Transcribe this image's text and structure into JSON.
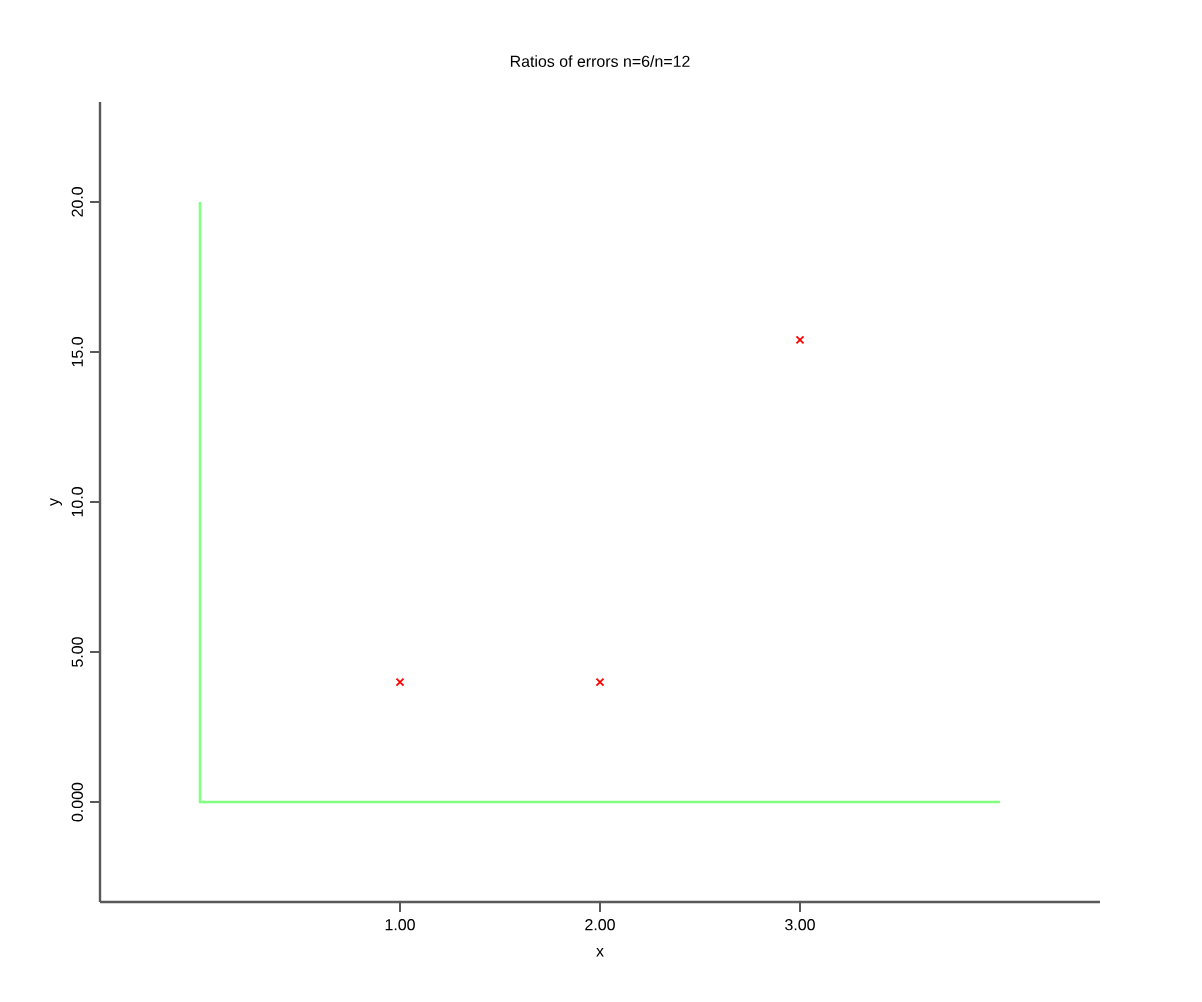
{
  "chart_data": {
    "type": "scatter",
    "title": "Ratios of errors n=6/n=12",
    "xlabel": "x",
    "ylabel": "y",
    "xlim": [
      -0.5,
      4.5
    ],
    "ylim": [
      -3.33,
      23.33
    ],
    "xticks": [
      {
        "value": 1,
        "label": "1.00"
      },
      {
        "value": 2,
        "label": "2.00"
      },
      {
        "value": 3,
        "label": "3.00"
      }
    ],
    "yticks": [
      {
        "value": 0,
        "label": "0.000"
      },
      {
        "value": 5,
        "label": "5.00"
      },
      {
        "value": 10,
        "label": "10.0"
      },
      {
        "value": 15,
        "label": "15.0"
      },
      {
        "value": 20,
        "label": "20.0"
      }
    ],
    "grid": false,
    "series": [
      {
        "type": "line",
        "color": "#80ff80",
        "x": [
          0,
          0,
          4
        ],
        "values": [
          20,
          0,
          0
        ],
        "marker": "none",
        "line_style": "solid"
      },
      {
        "color": "#ff0000",
        "x": [
          1,
          2,
          3
        ],
        "values": [
          4.0,
          4.0,
          15.4
        ],
        "marker": "cross"
      }
    ]
  }
}
